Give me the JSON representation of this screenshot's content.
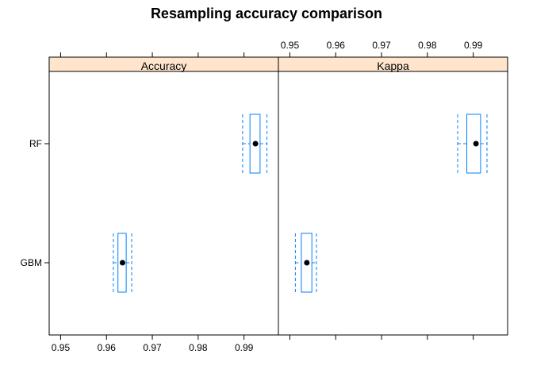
{
  "chart_data": {
    "type": "box",
    "title": "Resampling accuracy comparison",
    "xlim": [
      0.9475,
      0.9975
    ],
    "ticks": [
      0.95,
      0.96,
      0.97,
      0.98,
      0.99
    ],
    "tick_labels": [
      "0.95",
      "0.96",
      "0.97",
      "0.98",
      "0.99"
    ],
    "categories": [
      "GBM",
      "RF"
    ],
    "panels": [
      {
        "name": "Accuracy",
        "boxes": {
          "GBM": {
            "whisker_low": 0.9615,
            "q1": 0.9625,
            "median": 0.9635,
            "q3": 0.9643,
            "whisker_high": 0.9655
          },
          "RF": {
            "whisker_low": 0.9897,
            "q1": 0.9913,
            "median": 0.9925,
            "q3": 0.9935,
            "whisker_high": 0.995
          }
        }
      },
      {
        "name": "Kappa",
        "boxes": {
          "GBM": {
            "whisker_low": 0.9512,
            "q1": 0.9525,
            "median": 0.9537,
            "q3": 0.9548,
            "whisker_high": 0.9558
          },
          "RF": {
            "whisker_low": 0.9866,
            "q1": 0.9886,
            "median": 0.9906,
            "q3": 0.9916,
            "whisker_high": 0.993
          }
        }
      }
    ],
    "grid": false,
    "legend": "none"
  },
  "colors": {
    "box": "#0080ff",
    "strip": "#ffe5cc",
    "axis": "#000000",
    "median": "#000000"
  }
}
